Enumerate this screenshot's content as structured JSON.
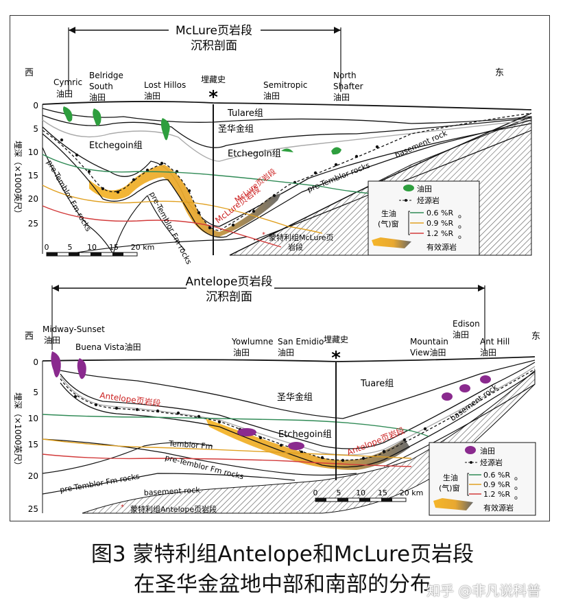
{
  "upper": {
    "title_line1": "McLure页岩段",
    "title_line2": "沉积剖面",
    "west": "西",
    "east": "东",
    "fields": [
      {
        "line1": "Cymric",
        "line2": "油田"
      },
      {
        "line1": "Belridge",
        "line2": "South",
        "line3": "油田"
      },
      {
        "line1": "Lost  Hillos",
        "line2": "油田"
      },
      {
        "line1": "Semitropic",
        "line2": "油田"
      },
      {
        "line1": "North",
        "line2": "Shafter",
        "line3": "油田"
      }
    ],
    "burial_history": "埋藏史",
    "star": "*",
    "units": {
      "tulare": "Tulare组",
      "shenghuajin": "圣华金组",
      "etchegoin_left": "Etchegoin组",
      "etchegoin_right": "Etchegoin组",
      "basement": "basement rock",
      "pretemblor_right": "pre-Temblor rocks",
      "pretemblor_left": "pre-Temblor Fm rocks",
      "pretemblor_center": "pre-Temblor Fm rocks",
      "mclure_label": "McLure页岩段",
      "mclure_label2": "McLure页岩段",
      "monterey_mclure_line1": "蒙特利组McLure页",
      "monterey_mclure_line2": "岩段",
      "monterey_asterisk": "*"
    },
    "y_axis_label": "埋深（×1000英尺）",
    "y_ticks": [
      "0",
      "5",
      "10",
      "15",
      "20",
      "25"
    ],
    "scale_ticks": [
      "0",
      "5",
      "10",
      "15",
      "20 km"
    ],
    "legend": {
      "oilfield": "油田",
      "source_rock": "烃源岩",
      "window_line1": "生油",
      "window_line2": "(气)窗",
      "ro_06": "0.6 %R",
      "ro_09": "0.9 %R",
      "ro_12": "1.2 %R",
      "ro_sub": "o",
      "effective": "有效源岩"
    }
  },
  "lower": {
    "title_line1": "Antelope页岩段",
    "title_line2": "沉积剖面",
    "west": "西",
    "east": "东",
    "fields": [
      {
        "line1": "Midway-Sunset",
        "line2": "油田"
      },
      {
        "line1": "Buena Vista油田"
      },
      {
        "line1": "Yowlumne",
        "line2": "油田"
      },
      {
        "line1": "San Emidio",
        "line2": "油田"
      },
      {
        "line1": "Mountain",
        "line2": "View油田"
      },
      {
        "line1": "Edison",
        "line2": "油田"
      },
      {
        "line1": "Ant Hill",
        "line2": "油田"
      }
    ],
    "burial_history": "埋藏史",
    "star": "*",
    "units": {
      "tuare": "Tuare组",
      "shenghuajin": "圣华金组",
      "etchegoin": "Etchegoin组",
      "antelope_left": "Antelope页岩段",
      "antelope_right": "Antelope页岩段",
      "temblor": "Temblor Fm",
      "pretemblor_center": "pre-Temblor Fm rocks",
      "pretemblor_left": "pre-Temblor Fm rocks",
      "basement_left": "basement rock",
      "basement_right": "basement rock",
      "monterey_antelope": "蒙特利组Antelope页岩段",
      "monterey_asterisk": "*"
    },
    "y_axis_label": "埋深（×1000英尺）",
    "y_ticks": [
      "0",
      "5",
      "10",
      "15",
      "20",
      "25"
    ],
    "scale_ticks": [
      "0",
      "5",
      "10",
      "15",
      "20 km"
    ],
    "legend": {
      "oilfield": "油田",
      "source_rock": "烃源岩",
      "window_line1": "生油",
      "window_line2": "(气)窗",
      "ro_06": "0.6 %R",
      "ro_09": "0.9 %R",
      "ro_12": "1.2 %R",
      "ro_sub": "o",
      "effective": "有效源岩"
    }
  },
  "caption": {
    "line1": "图3 蒙特利组Antelope和McLure页岩段",
    "line2": "在圣华金盆地中部和南部的分布"
  },
  "watermark": "知乎 @非凡说科普",
  "colors": {
    "oil_green": "#2e9e3e",
    "oil_purple": "#8a2a8e",
    "ro_06": "#2f8a55",
    "ro_09": "#e0a020",
    "ro_12": "#d23a3a",
    "effective_source": "#f0b030",
    "label_red": "#cc2222"
  }
}
